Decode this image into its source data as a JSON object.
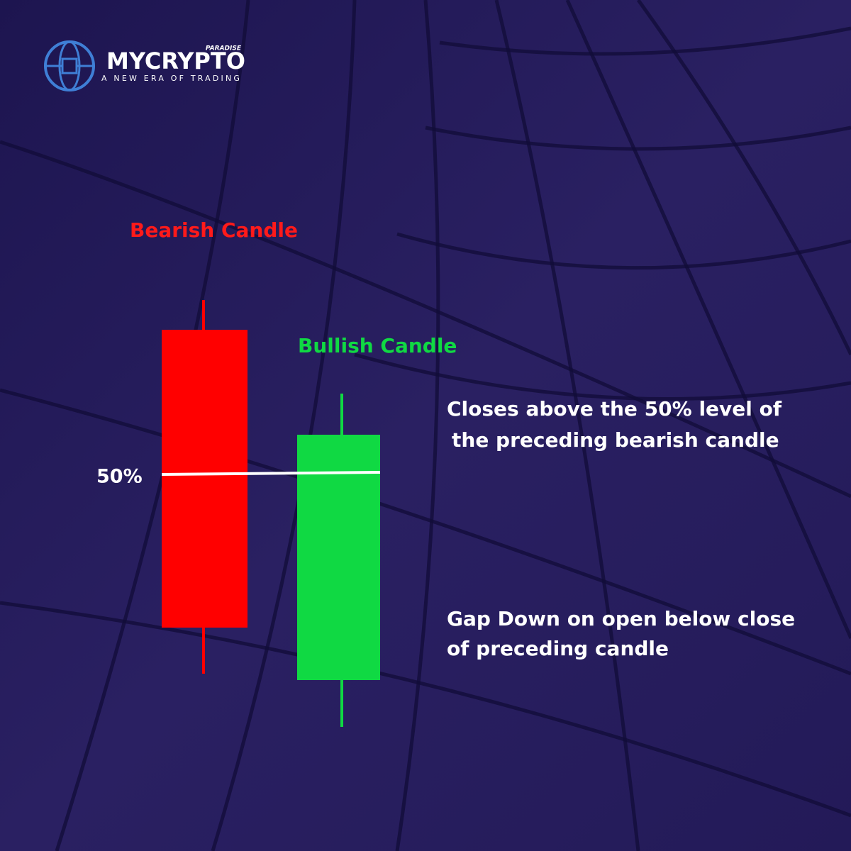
{
  "logo": {
    "name": "MYCRYPTO",
    "badge": "PARADISE",
    "tagline": "A NEW ERA OF TRADING"
  },
  "candles": [
    {
      "label": "Bearish Candle"
    },
    {
      "label": "Bullish Candle"
    }
  ],
  "level_label": "50%",
  "annotations": [
    {
      "lines": [
        "Closes above the 50% level of",
        "the preceding bearish candle"
      ]
    },
    {
      "lines": [
        "Gap Down on open below close",
        "of preceding candle"
      ]
    }
  ]
}
